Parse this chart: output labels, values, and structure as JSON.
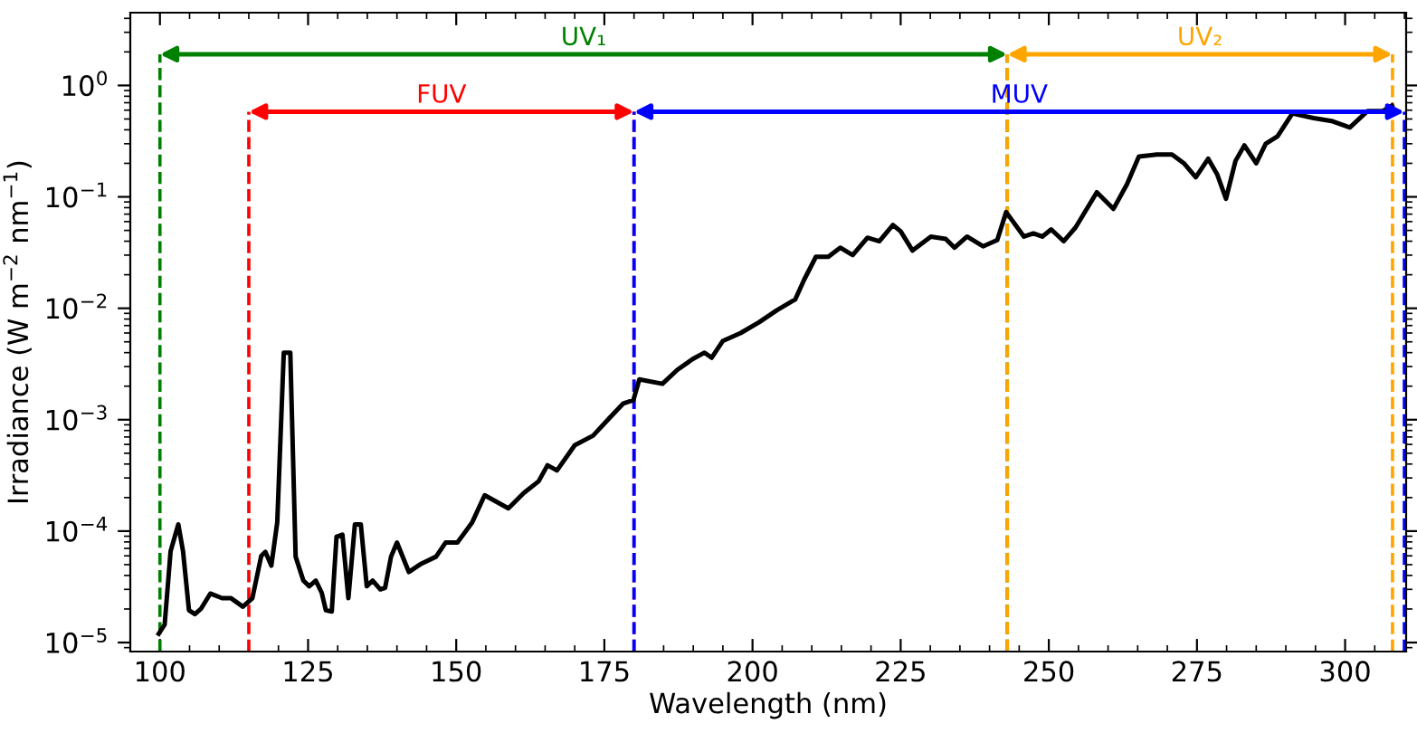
{
  "chart_data": {
    "type": "line",
    "xlabel": "Wavelength (nm)",
    "ylabel": "Irradiance (W m$^{−2}$ nm$^{−1}$)",
    "log": "y",
    "grid": false,
    "marker": "none",
    "line_style": "solid",
    "xlim": [
      95,
      310.3
    ],
    "ylim": [
      8.3e-06,
      4.5
    ],
    "xticks": [
      100,
      125,
      150,
      175,
      200,
      225,
      250,
      275,
      300
    ],
    "yticks": [
      {
        "value": 1e-05,
        "label": "10$^{−5}$"
      },
      {
        "value": 0.0001,
        "label": "10$^{−4}$"
      },
      {
        "value": 0.001,
        "label": "10$^{−3}$"
      },
      {
        "value": 0.01,
        "label": "10$^{−2}$"
      },
      {
        "value": 0.1,
        "label": "10$^{−1}$"
      },
      {
        "value": 1,
        "label": "10$^{0}$"
      }
    ],
    "series": [
      {
        "color": "#000000",
        "x": [
          99.8,
          100.8,
          101.8,
          103.1,
          103.9,
          104.9,
          105.9,
          106.9,
          108.5,
          110.5,
          112,
          114,
          115.6,
          117.1,
          117.8,
          118.8,
          119.8,
          120.9,
          122,
          122.9,
          124.2,
          125.2,
          126.3,
          127.3,
          128,
          129,
          129.8,
          130.8,
          131.8,
          132.9,
          133.9,
          134.9,
          135.9,
          137.2,
          138,
          139,
          140,
          142,
          144.1,
          146.6,
          148.2,
          150.2,
          152.7,
          154.8,
          158.8,
          161.4,
          163.9,
          165.4,
          167,
          170,
          173.1,
          175.6,
          178.2,
          179.9,
          180.9,
          184.8,
          187.3,
          189.9,
          191.9,
          193.1,
          195,
          198,
          201.1,
          204.1,
          207.2,
          208.7,
          210.7,
          212.8,
          214.8,
          216.9,
          219.4,
          221.4,
          223.7,
          225,
          227,
          230.1,
          232.6,
          234.1,
          236.2,
          238.9,
          241.3,
          242.8,
          245.8,
          247.4,
          248.9,
          250.4,
          252.5,
          254.5,
          258.1,
          260.9,
          263.2,
          265.2,
          268.2,
          270.8,
          272.8,
          274.8,
          276.9,
          278.4,
          279.9,
          281.5,
          283,
          285,
          286.6,
          288.6,
          291.1,
          294.7,
          297.7,
          300.8,
          303.8,
          306.4,
          307.9
        ],
        "values": [
          1.2e-05,
          1.45e-05,
          6.6e-05,
          0.000115,
          6.6e-05,
          1.95e-05,
          1.8e-05,
          2e-05,
          2.75e-05,
          2.5e-05,
          2.5e-05,
          2.1e-05,
          2.5e-05,
          6e-05,
          6.5e-05,
          4.9e-05,
          0.00012,
          0.004,
          0.004,
          5.9e-05,
          3.6e-05,
          3.2e-05,
          3.6e-05,
          2.8e-05,
          1.95e-05,
          1.9e-05,
          8.9e-05,
          9.3e-05,
          2.5e-05,
          0.000115,
          0.000115,
          3.2e-05,
          3.6e-05,
          3e-05,
          3.1e-05,
          5.9e-05,
          7.9e-05,
          4.3e-05,
          5.1e-05,
          5.9e-05,
          7.9e-05,
          7.9e-05,
          0.00012,
          0.00021,
          0.00016,
          0.00022,
          0.00028,
          0.00039,
          0.00035,
          0.00059,
          0.00072,
          0.001,
          0.0014,
          0.0015,
          0.0023,
          0.0021,
          0.0028,
          0.0035,
          0.004,
          0.0036,
          0.0051,
          0.006,
          0.0075,
          0.0096,
          0.012,
          0.018,
          0.029,
          0.029,
          0.035,
          0.03,
          0.043,
          0.04,
          0.056,
          0.049,
          0.033,
          0.044,
          0.042,
          0.035,
          0.044,
          0.036,
          0.041,
          0.073,
          0.044,
          0.047,
          0.044,
          0.051,
          0.04,
          0.053,
          0.11,
          0.078,
          0.13,
          0.23,
          0.24,
          0.24,
          0.2,
          0.15,
          0.22,
          0.16,
          0.096,
          0.21,
          0.29,
          0.2,
          0.3,
          0.35,
          0.56,
          0.51,
          0.48,
          0.42,
          0.59,
          0.59,
          0.66
        ]
      }
    ],
    "ref_lines": [
      {
        "axis": "x",
        "value": 100,
        "label": "UV₁",
        "color": "#008000",
        "line_style": "dashed"
      },
      {
        "axis": "x",
        "value": 243,
        "label": null,
        "color": "#008000",
        "line_style": "dashed"
      },
      {
        "axis": "x",
        "value": 243,
        "label": "UV₂",
        "color": "#ffa500",
        "line_style": "dashed"
      },
      {
        "axis": "x",
        "value": 308,
        "label": null,
        "color": "#ffa500",
        "line_style": "dashed"
      },
      {
        "axis": "x",
        "value": 115,
        "label": "FUV",
        "color": "#ff0000",
        "line_style": "dashed"
      },
      {
        "axis": "x",
        "value": 180,
        "label": null,
        "color": "#ff0000",
        "line_style": "dashed"
      },
      {
        "axis": "x",
        "value": 180,
        "label": "MUV",
        "color": "#0000ff",
        "line_style": "dashed"
      },
      {
        "axis": "x",
        "value": 310,
        "label": null,
        "color": "#0000ff",
        "line_style": "dashed"
      }
    ]
  }
}
